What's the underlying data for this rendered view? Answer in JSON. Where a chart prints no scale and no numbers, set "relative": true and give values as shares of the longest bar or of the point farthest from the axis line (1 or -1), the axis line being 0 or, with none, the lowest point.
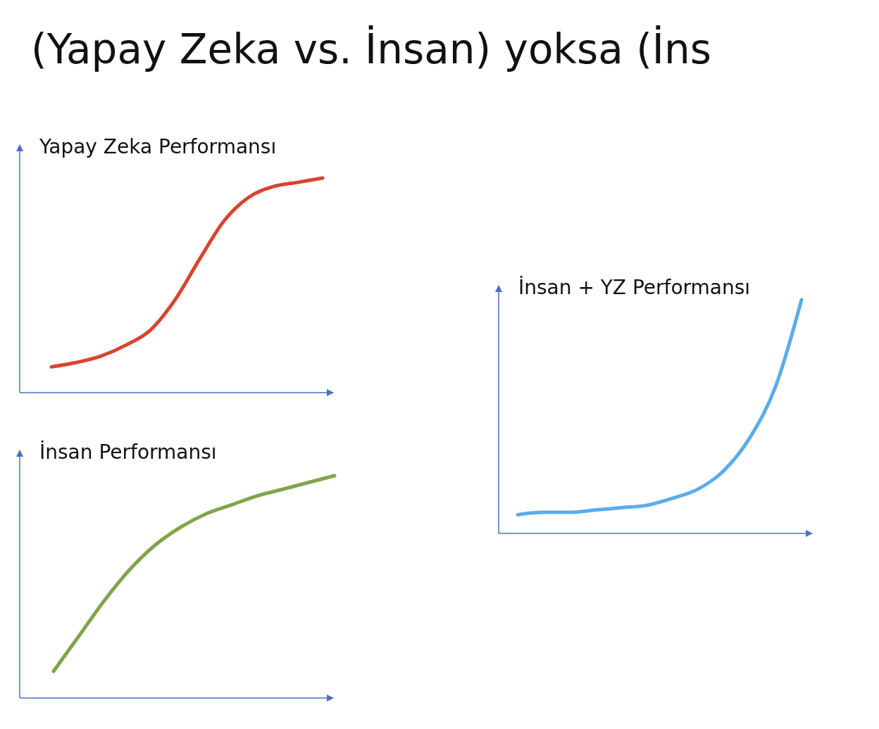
{
  "chart_data": [
    {
      "type": "line",
      "title": "Yapay Zeka Performansı",
      "annotations": [
        "(Yapay Zeka vs. İnsan) yoksa (İns"
      ],
      "relative": true,
      "categories": [
        null,
        null,
        null,
        null,
        null,
        null,
        null,
        null,
        null,
        null,
        null,
        null
      ],
      "color": "#d9432f",
      "values": [
        0.12,
        0.14,
        0.17,
        0.22,
        0.29,
        0.43,
        0.62,
        0.8,
        0.91,
        0.96,
        0.98,
        1
      ]
    },
    {
      "type": "line",
      "title": "İnsan Performansı",
      "relative": true,
      "categories": [
        null,
        null,
        null,
        null,
        null,
        null,
        null,
        null,
        null,
        null,
        null,
        null
      ],
      "color": "#7fa54a",
      "values": [
        0.12,
        0.28,
        0.44,
        0.58,
        0.69,
        0.77,
        0.83,
        0.87,
        0.91,
        0.94,
        0.97,
        1
      ]
    },
    {
      "type": "line",
      "title": "İnsan + YZ Performansı",
      "relative": true,
      "categories": [
        null,
        null,
        null,
        null,
        null,
        null,
        null,
        null,
        null,
        null,
        null,
        null
      ],
      "color": "#5aade8",
      "values": [
        0.08,
        0.09,
        0.09,
        0.1,
        0.11,
        0.12,
        0.15,
        0.19,
        0.27,
        0.41,
        0.63,
        1
      ]
    }
  ]
}
